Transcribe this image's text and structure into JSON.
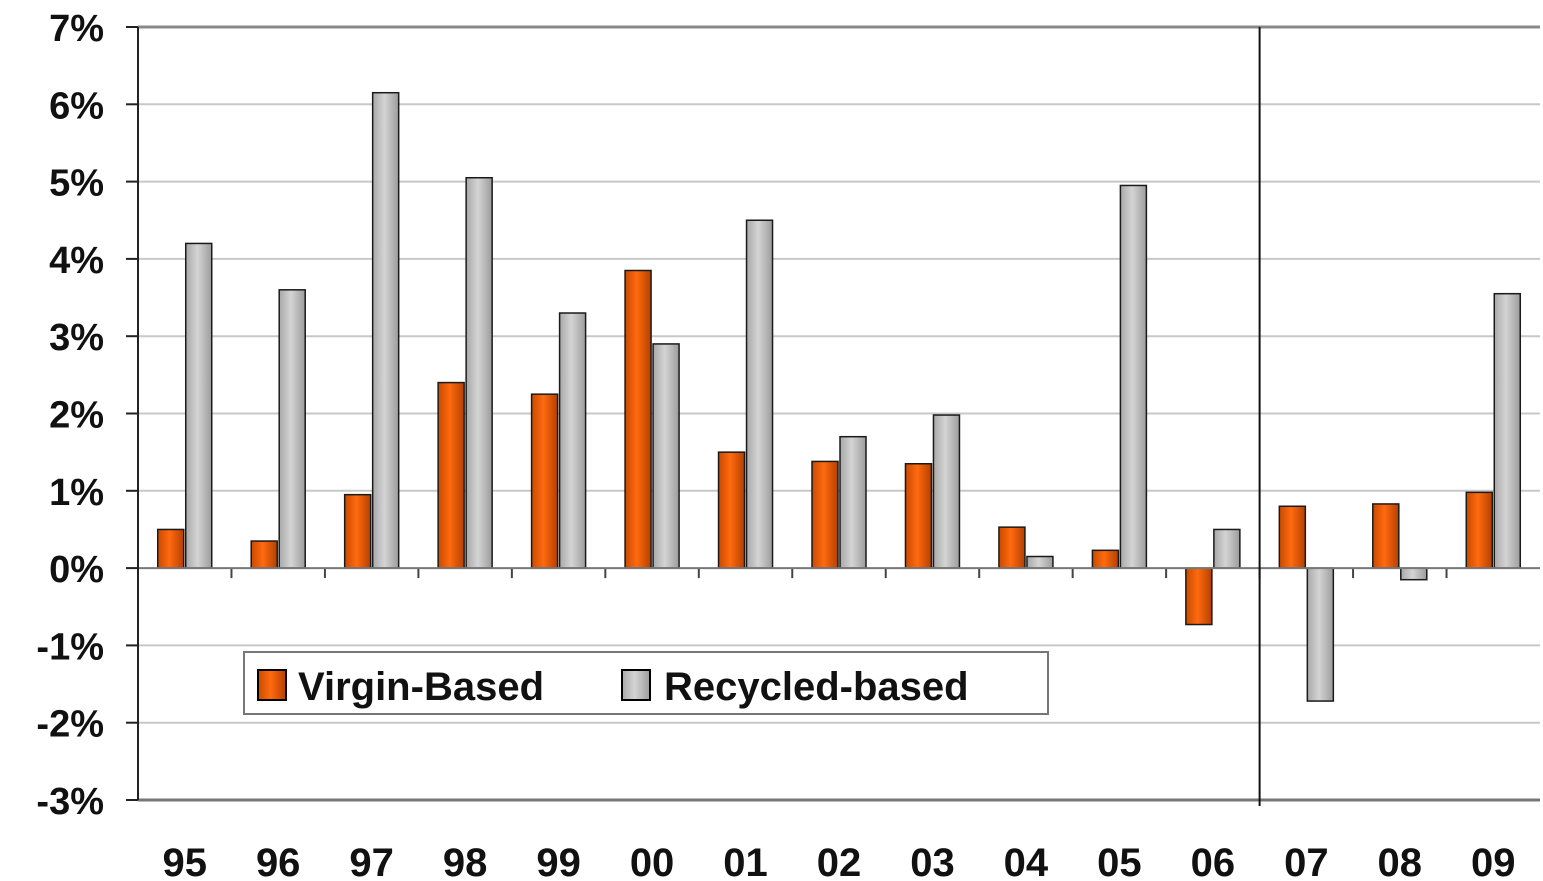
{
  "chart_data": {
    "type": "bar",
    "categories": [
      "95",
      "96",
      "97",
      "98",
      "99",
      "00",
      "01",
      "02",
      "03",
      "04",
      "05",
      "06",
      "07",
      "08",
      "09"
    ],
    "series": [
      {
        "name": "Virgin-Based",
        "color": "#e05a00",
        "values": [
          0.5,
          0.35,
          0.95,
          2.4,
          2.25,
          3.85,
          1.5,
          1.38,
          1.35,
          0.53,
          0.23,
          -0.73,
          0.8,
          0.83,
          0.98
        ]
      },
      {
        "name": "Recycled-based",
        "color": "#bdbdbd",
        "values": [
          4.2,
          3.6,
          6.15,
          5.05,
          3.3,
          2.9,
          4.5,
          1.7,
          1.98,
          0.15,
          4.95,
          0.5,
          -1.72,
          -0.15,
          3.55
        ]
      }
    ],
    "ylim": [
      -3,
      7
    ],
    "yticks": [
      "7%",
      "6%",
      "5%",
      "4%",
      "3%",
      "2%",
      "1%",
      "0%",
      "-1%",
      "-2%",
      "-3%"
    ],
    "xlabel": "",
    "ylabel": "",
    "title": "",
    "grid": true,
    "divider_after_category": "06",
    "legend": {
      "placement": "lower-left",
      "items": [
        "Virgin-Based",
        "Recycled-based"
      ]
    }
  }
}
